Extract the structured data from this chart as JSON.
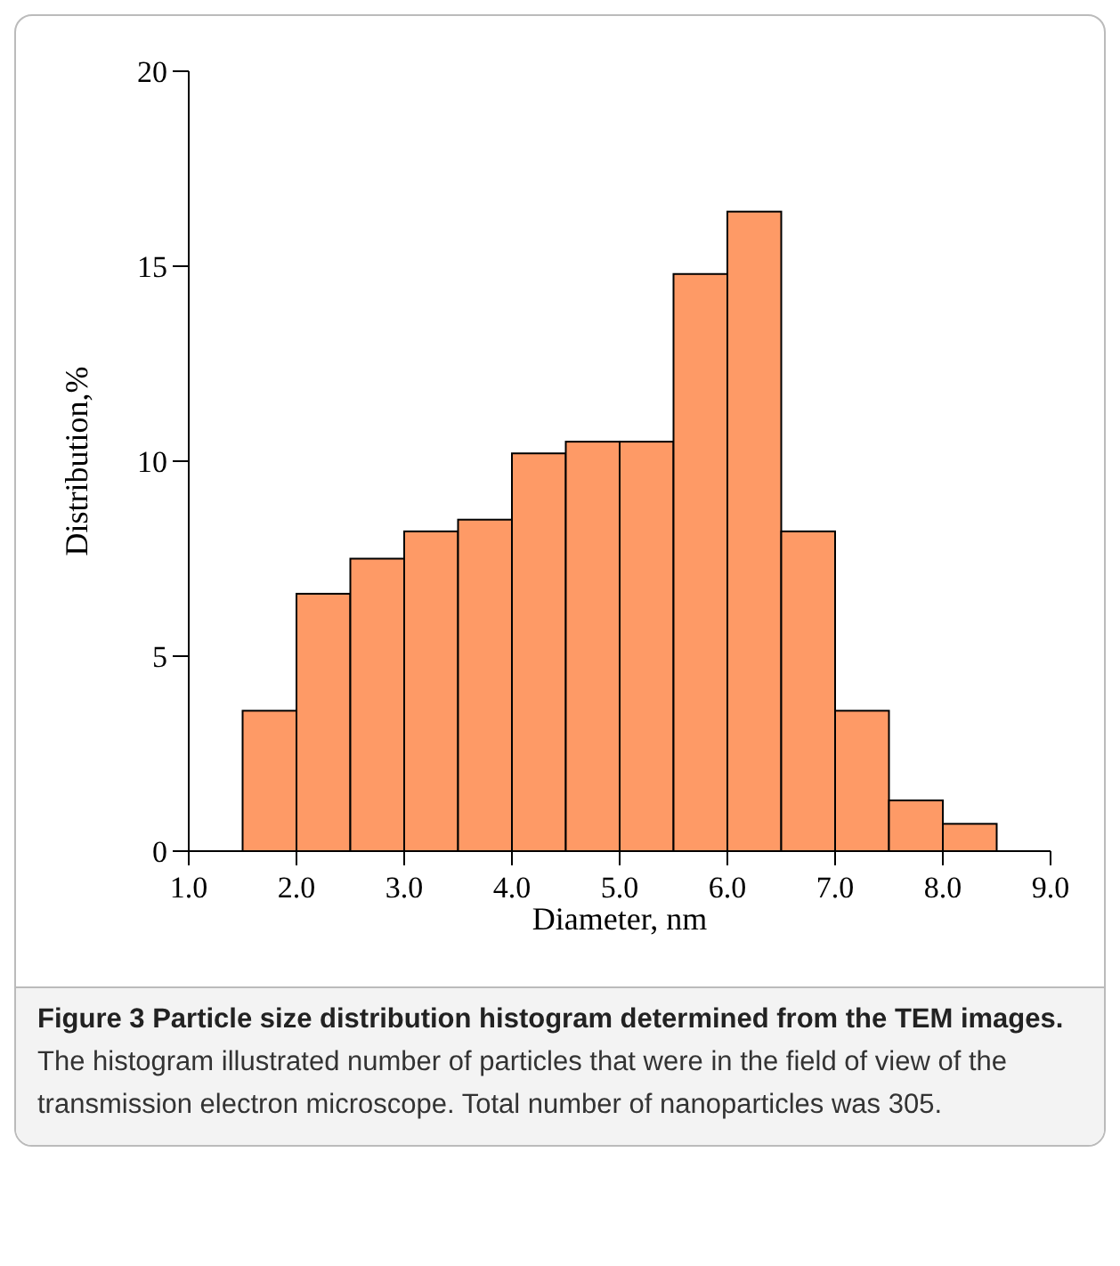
{
  "chart_data": {
    "type": "histogram",
    "title": "Figure 3 Particle size distribution histogram determined from the TEM images.",
    "annotations": [
      "The histogram illustrated number of particles that were in the field of view of the transmission electron microscope. Total number of nanoparticles was 305."
    ],
    "xlabel": "Diameter, nm",
    "ylabel": "Distribution,%",
    "bins": [
      1.5,
      2.0,
      2.5,
      3.0,
      3.5,
      4.0,
      4.5,
      5.0,
      5.5,
      6.0,
      6.5,
      7.0,
      7.5,
      8.0,
      8.5
    ],
    "values": [
      3.6,
      6.6,
      7.5,
      8.2,
      8.5,
      10.2,
      10.5,
      10.5,
      14.8,
      16.4,
      8.2,
      3.6,
      1.3,
      0.7
    ],
    "color": "#fe9a66",
    "xlim": [
      1,
      9
    ],
    "xticks": [
      {
        "value": 1,
        "label": "1.0"
      },
      {
        "value": 2,
        "label": "2.0"
      },
      {
        "value": 3,
        "label": "3.0"
      },
      {
        "value": 4,
        "label": "4.0"
      },
      {
        "value": 5,
        "label": "5.0"
      },
      {
        "value": 6,
        "label": "6.0"
      },
      {
        "value": 7,
        "label": "7.0"
      },
      {
        "value": 8,
        "label": "8.0"
      },
      {
        "value": 9,
        "label": "9.0"
      }
    ],
    "ylim": [
      0,
      20
    ],
    "yticks": [
      0,
      5,
      10,
      15,
      20
    ],
    "grid": false
  }
}
